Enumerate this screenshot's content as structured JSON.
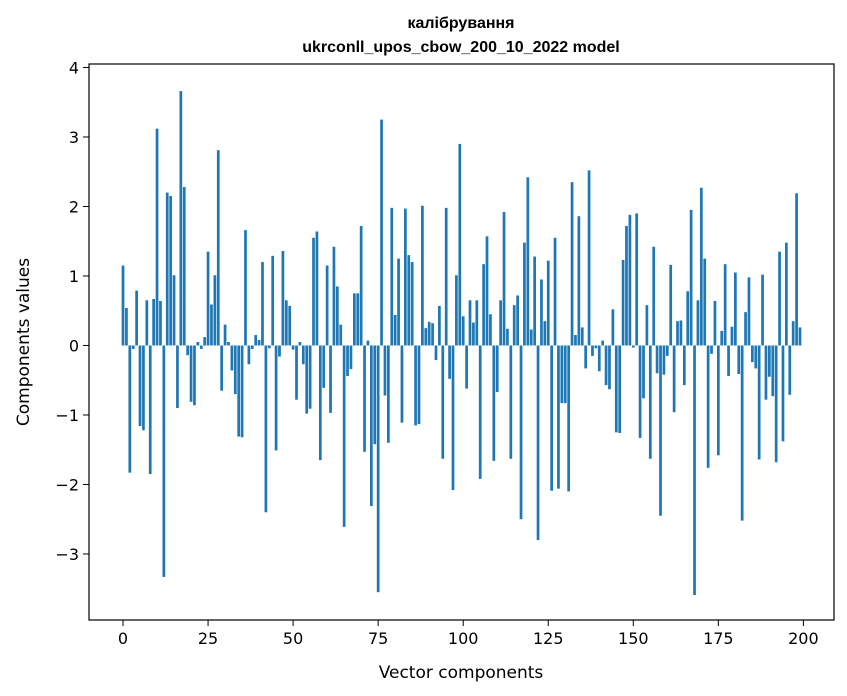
{
  "chart_data": {
    "type": "bar",
    "title_lines": [
      "калібрування",
      "ukrconll_upos_cbow_200_10_2022 model"
    ],
    "xlabel": "Vector components",
    "ylabel": "Components values",
    "xlim": [
      -10,
      209
    ],
    "ylim": [
      -3.95,
      4.05
    ],
    "xticks": [
      0,
      25,
      50,
      75,
      100,
      125,
      150,
      175,
      200
    ],
    "yticks": [
      -3,
      -2,
      -1,
      0,
      1,
      2,
      3,
      4
    ],
    "ytick_labels": [
      "−3",
      "−2",
      "−1",
      "0",
      "1",
      "2",
      "3",
      "4"
    ],
    "grid": false,
    "color": "#1f77b4",
    "values": [
      1.15,
      0.54,
      -1.83,
      -0.05,
      0.79,
      -1.16,
      -1.22,
      0.65,
      -1.85,
      0.67,
      3.12,
      0.64,
      -3.33,
      2.2,
      2.15,
      1.01,
      -0.9,
      3.66,
      2.28,
      -0.14,
      -0.81,
      -0.86,
      0.05,
      -0.05,
      0.12,
      1.35,
      0.59,
      1.01,
      2.81,
      -0.65,
      0.3,
      0.05,
      -0.36,
      -0.7,
      -1.31,
      -1.32,
      1.66,
      -0.27,
      -0.05,
      0.15,
      0.08,
      1.2,
      -2.4,
      -0.04,
      1.29,
      -1.51,
      -0.16,
      1.36,
      0.65,
      0.57,
      -0.06,
      -0.78,
      0.05,
      -0.27,
      -0.98,
      -0.91,
      1.55,
      1.64,
      -1.65,
      -0.61,
      1.15,
      -0.97,
      1.42,
      0.85,
      0.3,
      -2.61,
      -0.44,
      -0.34,
      0.75,
      0.75,
      1.72,
      -1.53,
      0.07,
      -2.31,
      -1.42,
      -3.55,
      3.25,
      -0.72,
      -1.4,
      1.98,
      0.44,
      1.25,
      -1.11,
      1.97,
      1.3,
      1.2,
      -1.15,
      -1.13,
      2.01,
      0.25,
      0.34,
      0.32,
      -0.21,
      0.57,
      -1.63,
      1.98,
      -0.48,
      -2.08,
      1.01,
      2.9,
      0.42,
      -0.62,
      0.65,
      0.33,
      0.65,
      -1.92,
      1.17,
      1.57,
      0.45,
      -1.66,
      -0.67,
      0.65,
      1.92,
      0.24,
      -1.63,
      0.58,
      0.72,
      -2.5,
      1.48,
      2.42,
      0.23,
      1.28,
      -2.8,
      0.95,
      0.35,
      1.22,
      -2.09,
      1.55,
      -2.06,
      -0.83,
      -0.83,
      -2.1,
      2.35,
      0.15,
      1.86,
      0.26,
      -0.33,
      2.52,
      -0.15,
      -0.04,
      -0.37,
      0.07,
      -0.57,
      -0.63,
      0.52,
      -1.25,
      -1.26,
      1.23,
      1.72,
      1.88,
      -0.03,
      1.9,
      -1.33,
      -0.76,
      0.58,
      -1.63,
      1.42,
      -0.4,
      -2.45,
      -0.42,
      -0.15,
      1.16,
      -0.96,
      0.35,
      0.36,
      -0.57,
      0.78,
      1.95,
      -3.59,
      0.65,
      2.27,
      1.25,
      -1.76,
      -0.12,
      0.64,
      -1.58,
      0.21,
      1.17,
      -0.44,
      0.27,
      1.05,
      -0.41,
      -2.52,
      0.48,
      0.98,
      -0.24,
      -0.33,
      -1.64,
      1.02,
      -0.78,
      -0.45,
      -0.73,
      -1.68,
      1.35,
      -1.38,
      1.48,
      -0.71,
      0.35,
      2.19,
      0.26
    ]
  }
}
